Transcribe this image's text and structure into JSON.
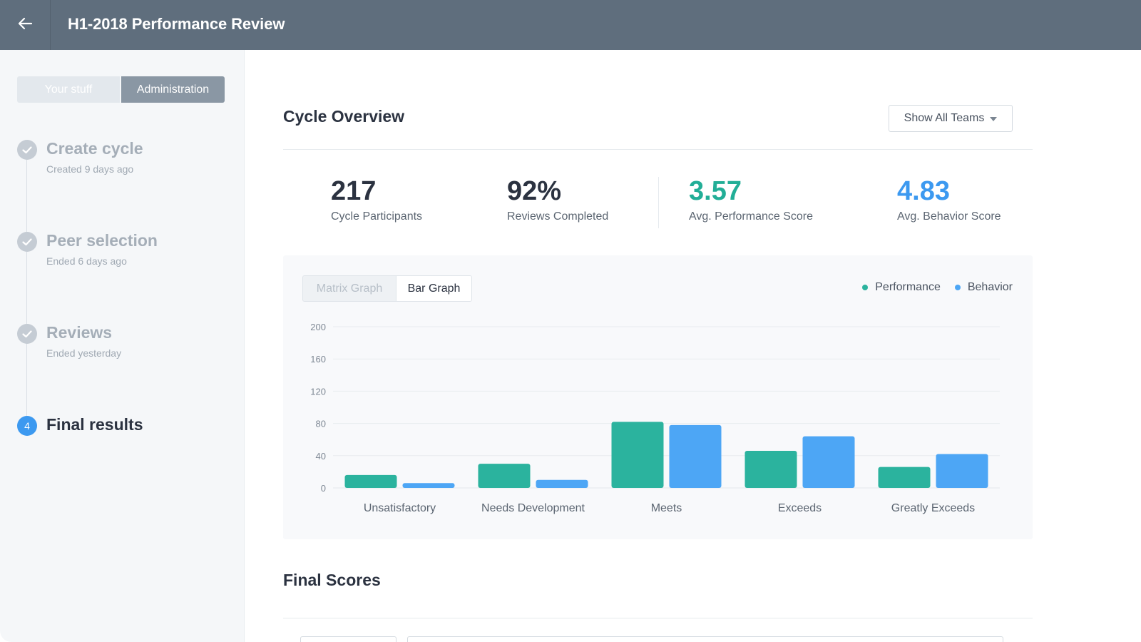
{
  "header": {
    "title": "H1-2018 Performance Review",
    "back_icon": "arrow-left-icon"
  },
  "sidebar": {
    "tabs": [
      {
        "label": "Your stuff",
        "selected": false
      },
      {
        "label": "Administration",
        "selected": true
      }
    ],
    "steps": [
      {
        "title": "Create cycle",
        "subtitle": "Created 9 days ago",
        "state": "done"
      },
      {
        "title": "Peer selection",
        "subtitle": "Ended 6 days ago",
        "state": "done"
      },
      {
        "title": "Reviews",
        "subtitle": "Ended yesterday",
        "state": "done"
      },
      {
        "title": "Final results",
        "subtitle": "",
        "state": "active",
        "number": "4"
      }
    ]
  },
  "overview": {
    "title": "Cycle Overview",
    "team_filter": "Show All Teams",
    "stats": [
      {
        "value": "217",
        "label": "Cycle Participants"
      },
      {
        "value": "92%",
        "label": "Reviews Completed"
      },
      {
        "value": "3.57",
        "label": "Avg. Performance Score",
        "color": "#22ae97"
      },
      {
        "value": "4.83",
        "label": "Avg. Behavior Score",
        "color": "#3c99f0"
      }
    ]
  },
  "graph_toggle": {
    "matrix": "Matrix Graph",
    "bar": "Bar Graph",
    "selected": "bar"
  },
  "chart_data": {
    "type": "bar",
    "categories": [
      "Unsatisfactory",
      "Needs Development",
      "Meets",
      "Exceeds",
      "Greatly Exceeds"
    ],
    "series": [
      {
        "name": "Performance",
        "color": "#2bb39e",
        "values": [
          16,
          30,
          82,
          46,
          26
        ]
      },
      {
        "name": "Behavior",
        "color": "#4da6f5",
        "values": [
          6,
          10,
          78,
          64,
          42
        ]
      }
    ],
    "yticks": [
      0,
      40,
      80,
      120,
      160,
      200
    ],
    "ylim": [
      0,
      200
    ],
    "grid": true,
    "legend": "top-right"
  },
  "final_scores": {
    "title": "Final Scores"
  }
}
